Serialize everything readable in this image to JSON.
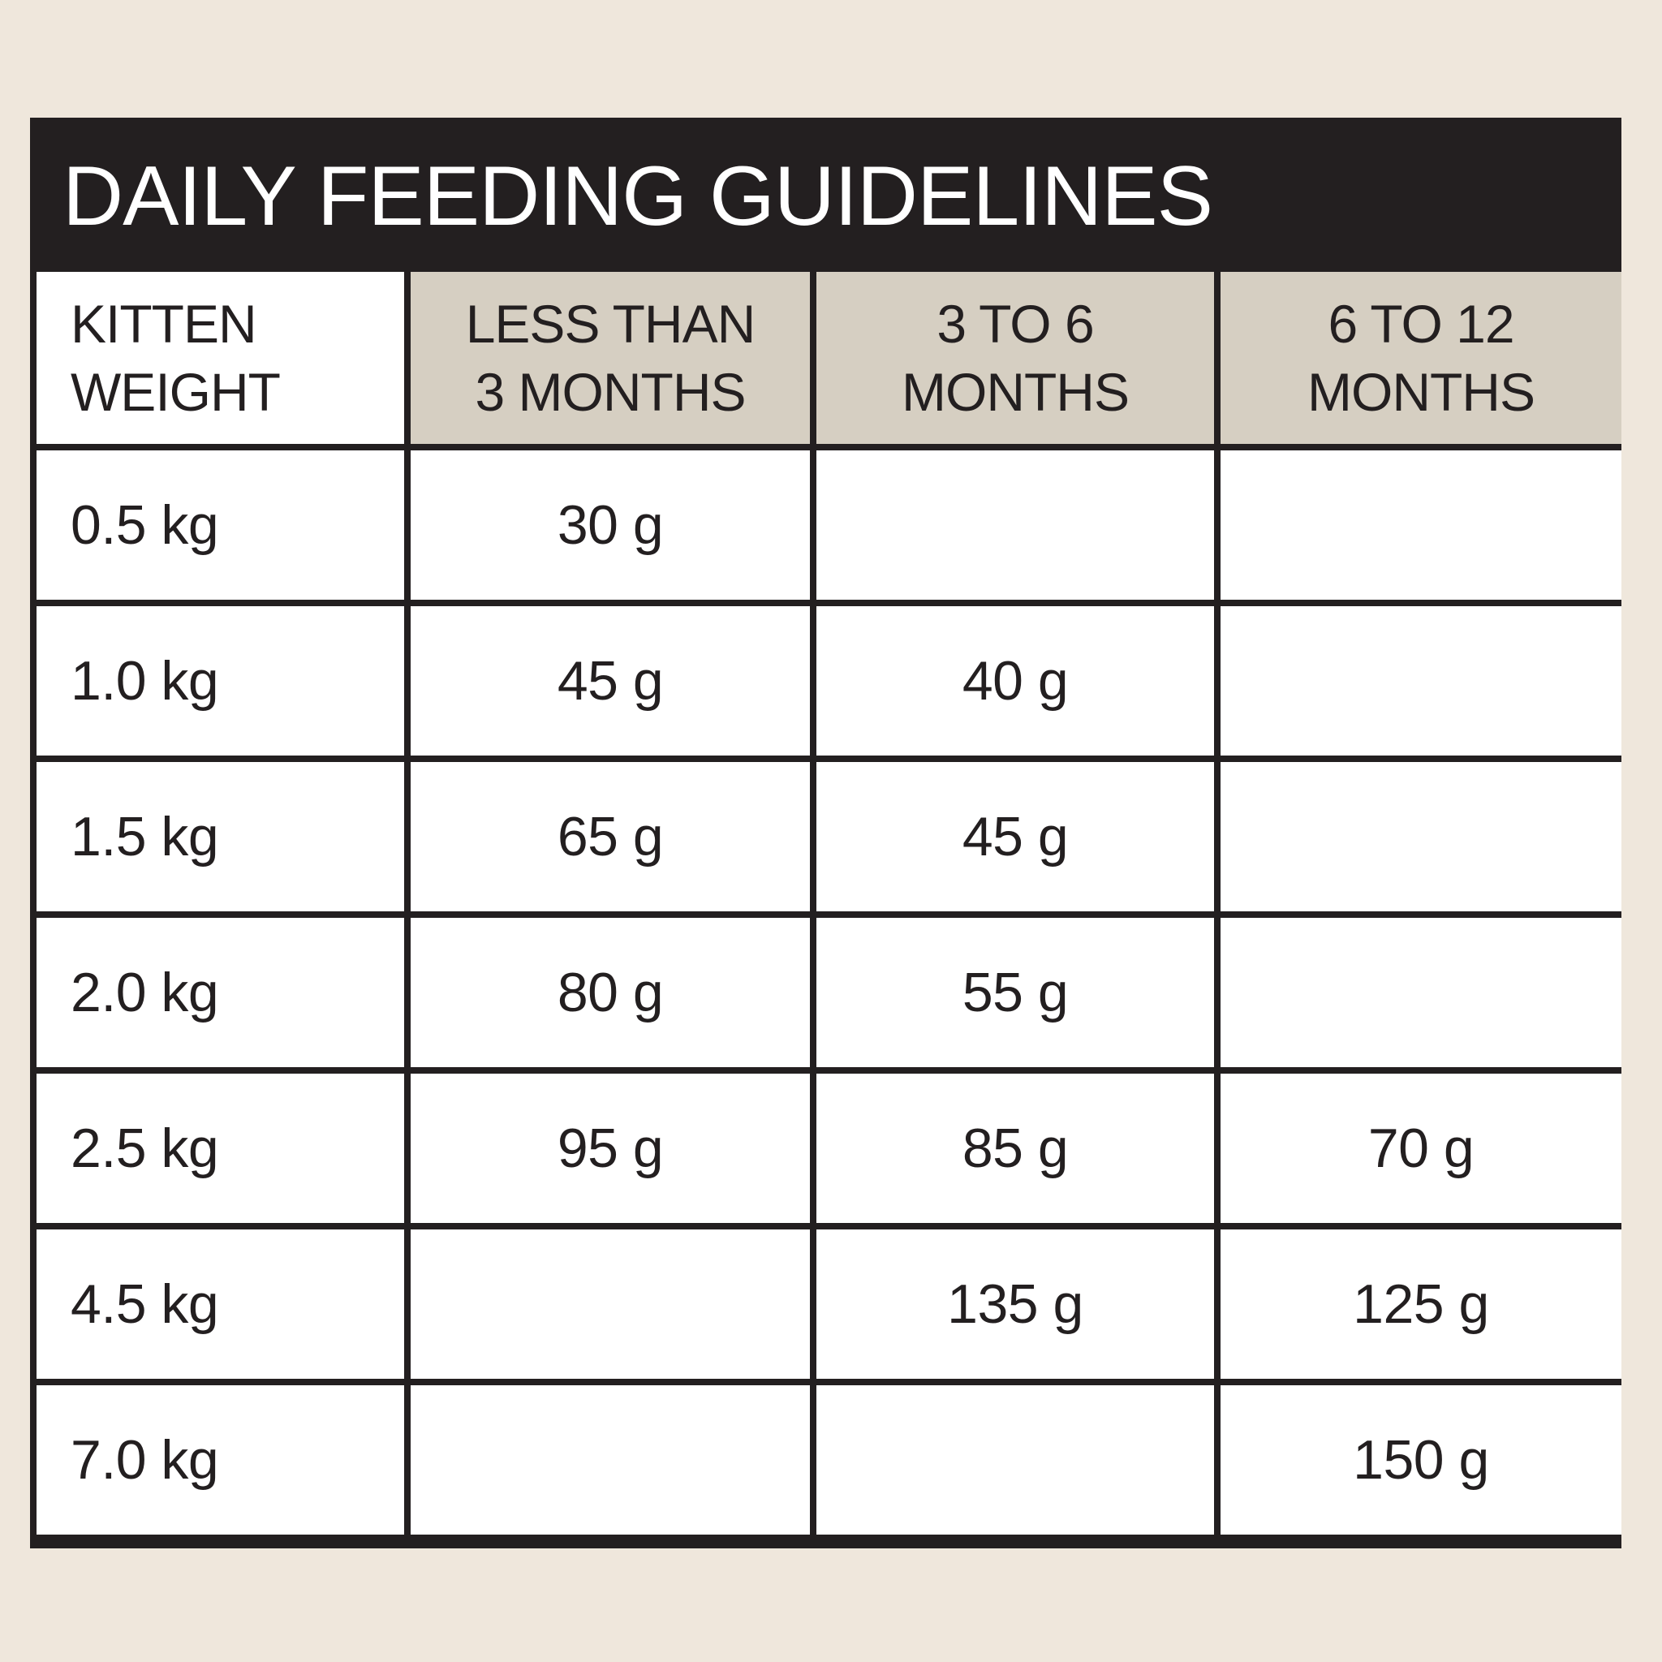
{
  "title": "DAILY FEEDING GUIDELINES",
  "columns": [
    {
      "line1": "KITTEN",
      "line2": "WEIGHT"
    },
    {
      "line1": "LESS THAN",
      "line2": "3 MONTHS"
    },
    {
      "line1": "3 TO 6",
      "line2": "MONTHS"
    },
    {
      "line1": "6 TO 12",
      "line2": "MONTHS"
    }
  ],
  "rows": [
    [
      "0.5 kg",
      "30 g",
      "",
      ""
    ],
    [
      "1.0 kg",
      "45 g",
      "40 g",
      ""
    ],
    [
      "1.5 kg",
      "65 g",
      "45 g",
      ""
    ],
    [
      "2.0 kg",
      "80 g",
      "55 g",
      ""
    ],
    [
      "2.5 kg",
      "95 g",
      "85 g",
      "70 g"
    ],
    [
      "4.5 kg",
      "",
      "135 g",
      "125 g"
    ],
    [
      "7.0 kg",
      "",
      "",
      "150 g"
    ]
  ],
  "colors": {
    "background": "#efe7dc",
    "frame": "#231f20",
    "header_fill": "#d6cfc2",
    "cell_fill": "#ffffff"
  }
}
